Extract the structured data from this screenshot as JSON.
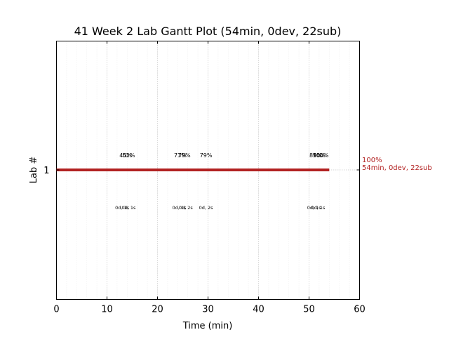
{
  "chart_data": {
    "type": "gantt",
    "title": "41 Week 2 Lab Gantt Plot (54min, 0dev, 22sub)",
    "xlabel": "Time (min)",
    "ylabel": "Lab #",
    "xlim": [
      0,
      60
    ],
    "x_ticks": [
      "0",
      "10",
      "20",
      "30",
      "40",
      "50",
      "60"
    ],
    "grid": true,
    "categories": [
      "1"
    ],
    "bar": {
      "lab": "1",
      "start": 0,
      "end": 54,
      "color": "#b22222"
    },
    "progress_labels": [
      {
        "x": 13.7,
        "text": "40%"
      },
      {
        "x": 14.3,
        "text": "52%"
      },
      {
        "x": 24.5,
        "text": "73%"
      },
      {
        "x": 25.3,
        "text": "79%"
      },
      {
        "x": 29.6,
        "text": "79%"
      },
      {
        "x": 51.3,
        "text": "85%"
      },
      {
        "x": 52.0,
        "text": "90%"
      },
      {
        "x": 52.3,
        "text": "100%"
      }
    ],
    "dev_sub_labels": [
      {
        "x": 13.0,
        "text": "0d, 1s"
      },
      {
        "x": 14.3,
        "text": "0d, 1s"
      },
      {
        "x": 24.3,
        "text": "0d, 1s"
      },
      {
        "x": 25.6,
        "text": "0d, 2s"
      },
      {
        "x": 29.6,
        "text": "0d, 2s"
      },
      {
        "x": 51.0,
        "text": "0d, 1s"
      },
      {
        "x": 51.8,
        "text": "0d, 1s"
      }
    ],
    "summary": {
      "percent": "100%",
      "detail": "54min, 0dev, 22sub"
    }
  }
}
